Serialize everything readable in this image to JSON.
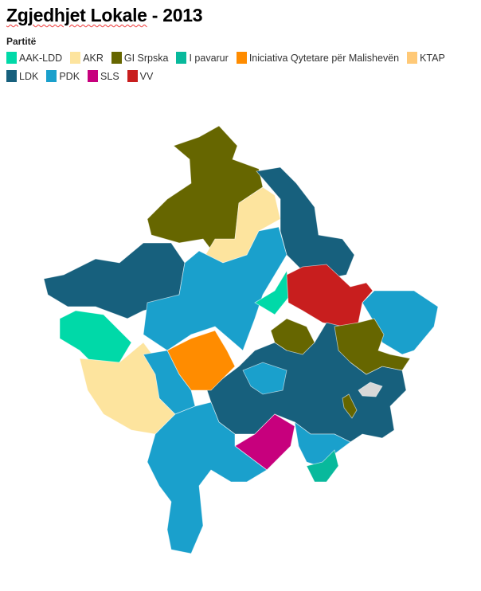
{
  "title_part1": "Zgjedhjet Lokale",
  "title_part2": " - 2013",
  "legend": {
    "title": "Partitë",
    "items": [
      {
        "key": "aak",
        "label": "AAK-LDD",
        "color": "#00d9a8"
      },
      {
        "key": "akr",
        "label": "AKR",
        "color": "#fde49e"
      },
      {
        "key": "gi",
        "label": "GI Srpska",
        "color": "#666600"
      },
      {
        "key": "ip",
        "label": "I pavarur",
        "color": "#08b99c"
      },
      {
        "key": "iqm",
        "label": "Iniciativa Qytetare për Malishevën",
        "color": "#ff8c00"
      },
      {
        "key": "ktap",
        "label": "KTAP",
        "color": "#ffc977"
      },
      {
        "key": "ldk",
        "label": "LDK",
        "color": "#17607d"
      },
      {
        "key": "pdk",
        "label": "PDK",
        "color": "#1aa0cc"
      },
      {
        "key": "sls",
        "label": "SLS",
        "color": "#c7007d"
      },
      {
        "key": "vv",
        "label": "VV",
        "color": "#c81e1e"
      }
    ]
  },
  "no_data_color": "#d8d8d8"
}
